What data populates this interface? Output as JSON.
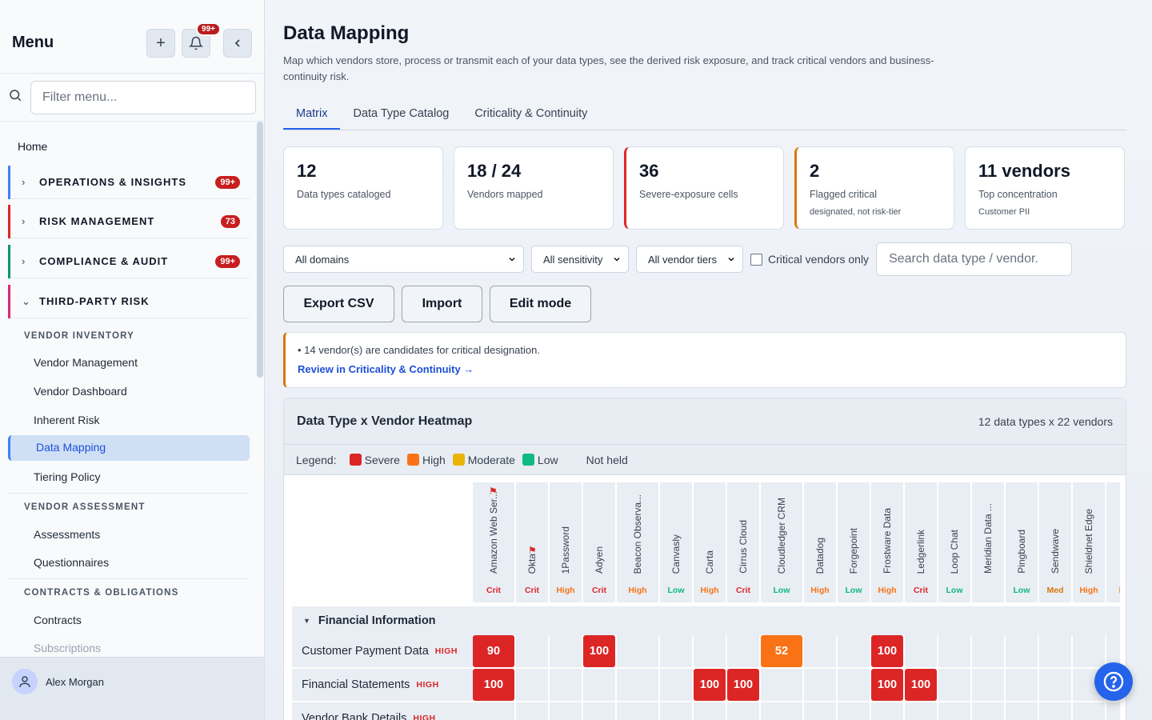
{
  "sidebar": {
    "title": "Menu",
    "notif_badge": "99+",
    "filter_placeholder": "Filter menu...",
    "home": "Home",
    "groups": [
      {
        "label": "OPERATIONS & INSIGHTS",
        "count": "99+",
        "color": "#3b82f6"
      },
      {
        "label": "RISK MANAGEMENT",
        "count": "73",
        "color": "#dc2626"
      },
      {
        "label": "COMPLIANCE & AUDIT",
        "count": "99+",
        "color": "#059669"
      },
      {
        "label": "THIRD-PARTY RISK",
        "count": "",
        "color": "#db2777"
      }
    ],
    "sections": [
      {
        "title": "VENDOR INVENTORY",
        "items": [
          "Vendor Management",
          "Vendor Dashboard",
          "Inherent Risk",
          "Data Mapping",
          "Tiering Policy"
        ]
      },
      {
        "title": "VENDOR ASSESSMENT",
        "items": [
          "Assessments",
          "Questionnaires"
        ]
      },
      {
        "title": "CONTRACTS & OBLIGATIONS",
        "items": [
          "Contracts",
          "Subscriptions"
        ]
      }
    ],
    "user": "Alex Morgan"
  },
  "page": {
    "title": "Data Mapping",
    "description": "Map which vendors store, process or transmit each of your data types, see the derived risk exposure, and track critical vendors and business-continuity risk.",
    "tabs": [
      "Matrix",
      "Data Type Catalog",
      "Criticality & Continuity"
    ]
  },
  "stats": [
    {
      "value": "12",
      "label": "Data types cataloged",
      "sub": ""
    },
    {
      "value": "18 / 24",
      "label": "Vendors mapped",
      "sub": ""
    },
    {
      "value": "36",
      "label": "Severe-exposure cells",
      "sub": ""
    },
    {
      "value": "2",
      "label": "Flagged critical",
      "sub": "designated, not risk-tier"
    },
    {
      "value": "11 vendors",
      "label": "Top concentration",
      "sub": "Customer PII"
    }
  ],
  "filters": {
    "domains": "All domains",
    "sensitivity": "All sensitivity",
    "tiers": "All vendor tiers",
    "critical_only": "Critical vendors only",
    "search_placeholder": "Search data type / vendor."
  },
  "buttons": {
    "export": "Export CSV",
    "import": "Import",
    "edit": "Edit mode"
  },
  "notice": {
    "text": "• 14 vendor(s) are candidates for critical designation.",
    "link": "Review in Criticality & Continuity →"
  },
  "heatmap": {
    "title": "Data Type x Vendor Heatmap",
    "count": "12 data types x 22 vendors",
    "legend_label": "Legend:",
    "legend": [
      {
        "label": "Severe",
        "color": "#dc2626"
      },
      {
        "label": "High",
        "color": "#f97316"
      },
      {
        "label": "Moderate",
        "color": "#eab308"
      },
      {
        "label": "Low",
        "color": "#10b981"
      },
      {
        "label": "Not held",
        "color": ""
      }
    ],
    "vendors": [
      {
        "name": "Amazon Web Ser...",
        "tier": "Crit",
        "flag": true
      },
      {
        "name": "Okta",
        "tier": "Crit",
        "flag": true
      },
      {
        "name": "1Password",
        "tier": "High",
        "flag": false
      },
      {
        "name": "Adyen",
        "tier": "Crit",
        "flag": false
      },
      {
        "name": "Beacon Observa...",
        "tier": "High",
        "flag": false
      },
      {
        "name": "Canvasly",
        "tier": "Low",
        "flag": false
      },
      {
        "name": "Carta",
        "tier": "High",
        "flag": false
      },
      {
        "name": "Cirrus Cloud",
        "tier": "Crit",
        "flag": false
      },
      {
        "name": "Cloudledger CRM",
        "tier": "Low",
        "flag": false
      },
      {
        "name": "Datadog",
        "tier": "High",
        "flag": false
      },
      {
        "name": "Forgepoint",
        "tier": "Low",
        "flag": false
      },
      {
        "name": "Frostware Data",
        "tier": "High",
        "flag": false
      },
      {
        "name": "Ledgerlink",
        "tier": "Crit",
        "flag": false
      },
      {
        "name": "Loop Chat",
        "tier": "Low",
        "flag": false
      },
      {
        "name": "Meridian Data ...",
        "tier": "",
        "flag": false
      },
      {
        "name": "Pingboard",
        "tier": "Low",
        "flag": false
      },
      {
        "name": "Sendwave",
        "tier": "Med",
        "flag": false
      },
      {
        "name": "Shieldnet Edge",
        "tier": "High",
        "flag": false
      },
      {
        "name": "...",
        "tier": "M",
        "flag": false
      }
    ],
    "section": "Financial Information",
    "rows": [
      {
        "label": "Customer Payment Data",
        "sev": "HIGH",
        "cells": [
          90,
          null,
          null,
          100,
          null,
          null,
          null,
          null,
          52,
          null,
          null,
          100,
          null,
          null,
          null,
          null,
          null,
          null,
          null
        ]
      },
      {
        "label": "Financial Statements",
        "sev": "HIGH",
        "cells": [
          100,
          null,
          null,
          null,
          null,
          null,
          100,
          100,
          null,
          null,
          null,
          100,
          100,
          null,
          null,
          null,
          null,
          null,
          null
        ]
      },
      {
        "label": "Vendor Bank Details",
        "sev": "HIGH",
        "cells": [
          null,
          null,
          null,
          null,
          null,
          null,
          null,
          null,
          null,
          null,
          null,
          null,
          null,
          null,
          null,
          null,
          null,
          null,
          null
        ]
      }
    ]
  },
  "colors": {
    "severe": "#dc2626",
    "high": "#f97316",
    "moderate": "#eab308",
    "low": "#10b981",
    "accent": "#2563eb"
  }
}
